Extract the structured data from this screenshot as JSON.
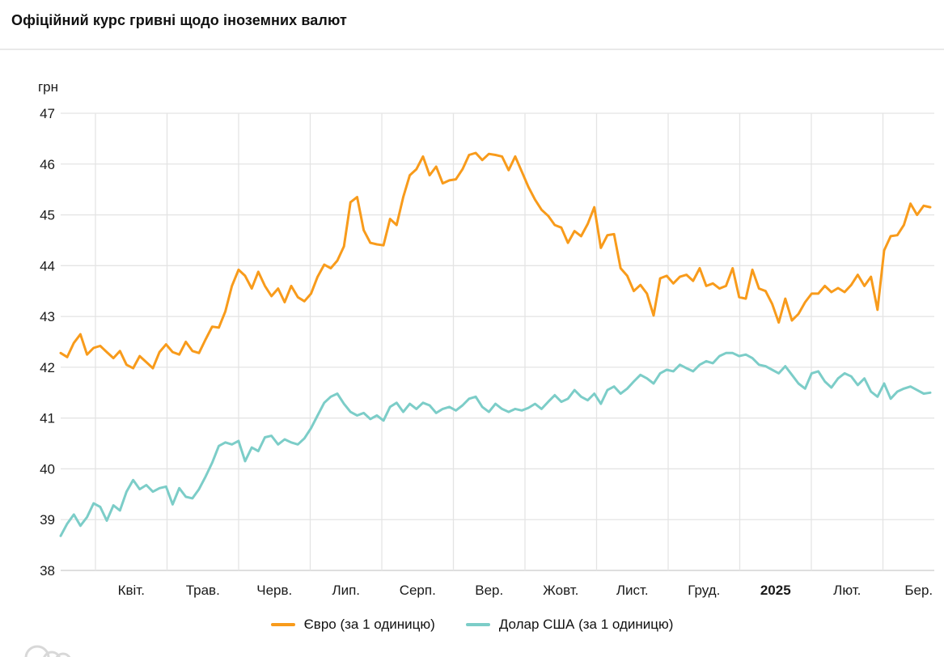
{
  "header": {
    "title": "Офіційний курс гривні щодо іноземних валют"
  },
  "colors": {
    "euro": "#F89B1B",
    "usd": "#7CCDC8",
    "grid": "#E4E4E4",
    "axis": "#CBCBCB",
    "text": "#1A1A1A",
    "divider": "#E9E9E9",
    "watermark": "#D8D8D8"
  },
  "chart_data": {
    "type": "line",
    "title": "Офіційний курс гривні щодо іноземних валют",
    "unit_label": "грн",
    "ylim": [
      38,
      47
    ],
    "y_ticks": [
      47,
      46,
      45,
      44,
      43,
      42,
      41,
      40,
      39,
      38
    ],
    "x_labels": [
      "Квіт.",
      "Трав.",
      "Черв.",
      "Лип.",
      "Серп.",
      "Вер.",
      "Жовт.",
      "Лист.",
      "Груд.",
      "2025",
      "Лют.",
      "Бер."
    ],
    "bold_x_label": "2025",
    "grid": true,
    "legend_position": "bottom",
    "series": [
      {
        "name": "Євро (за 1 одиницю)",
        "color_key": "euro",
        "values": [
          42.28,
          42.2,
          42.48,
          42.65,
          42.25,
          42.38,
          42.42,
          42.3,
          42.18,
          42.32,
          42.05,
          41.98,
          42.22,
          42.1,
          41.98,
          42.3,
          42.45,
          42.3,
          42.25,
          42.5,
          42.32,
          42.28,
          42.55,
          42.8,
          42.78,
          43.1,
          43.6,
          43.92,
          43.8,
          43.55,
          43.88,
          43.6,
          43.4,
          43.55,
          43.28,
          43.6,
          43.38,
          43.3,
          43.45,
          43.78,
          44.02,
          43.95,
          44.1,
          44.38,
          45.25,
          45.35,
          44.7,
          44.45,
          44.42,
          44.4,
          44.92,
          44.8,
          45.35,
          45.78,
          45.9,
          46.15,
          45.78,
          45.95,
          45.62,
          45.68,
          45.7,
          45.9,
          46.18,
          46.22,
          46.08,
          46.2,
          46.18,
          46.15,
          45.88,
          46.15,
          45.85,
          45.55,
          45.3,
          45.1,
          44.98,
          44.8,
          44.75,
          44.45,
          44.68,
          44.58,
          44.82,
          45.15,
          44.35,
          44.6,
          44.62,
          43.95,
          43.8,
          43.5,
          43.62,
          43.45,
          43.02,
          43.75,
          43.8,
          43.65,
          43.78,
          43.82,
          43.7,
          43.95,
          43.6,
          43.65,
          43.55,
          43.6,
          43.95,
          43.38,
          43.35,
          43.92,
          43.55,
          43.5,
          43.25,
          42.88,
          43.35,
          42.92,
          43.05,
          43.28,
          43.45,
          43.45,
          43.6,
          43.48,
          43.56,
          43.48,
          43.62,
          43.82,
          43.6,
          43.78,
          43.13,
          44.3,
          44.58,
          44.6,
          44.8,
          45.22,
          45.0,
          45.18,
          45.15
        ]
      },
      {
        "name": "Долар США (за 1 одиницю)",
        "color_key": "usd",
        "values": [
          38.68,
          38.92,
          39.1,
          38.88,
          39.05,
          39.32,
          39.25,
          38.98,
          39.28,
          39.18,
          39.55,
          39.78,
          39.6,
          39.68,
          39.55,
          39.62,
          39.65,
          39.3,
          39.62,
          39.45,
          39.42,
          39.6,
          39.85,
          40.12,
          40.45,
          40.52,
          40.48,
          40.55,
          40.15,
          40.42,
          40.35,
          40.62,
          40.65,
          40.48,
          40.58,
          40.52,
          40.48,
          40.6,
          40.8,
          41.05,
          41.3,
          41.42,
          41.48,
          41.28,
          41.12,
          41.05,
          41.1,
          40.98,
          41.05,
          40.95,
          41.22,
          41.3,
          41.12,
          41.28,
          41.18,
          41.3,
          41.25,
          41.1,
          41.18,
          41.22,
          41.15,
          41.25,
          41.38,
          41.42,
          41.22,
          41.12,
          41.28,
          41.18,
          41.12,
          41.18,
          41.15,
          41.2,
          41.28,
          41.18,
          41.32,
          41.45,
          41.32,
          41.38,
          41.55,
          41.42,
          41.35,
          41.48,
          41.28,
          41.55,
          41.62,
          41.48,
          41.58,
          41.72,
          41.85,
          41.78,
          41.68,
          41.88,
          41.95,
          41.92,
          42.05,
          41.98,
          41.92,
          42.05,
          42.12,
          42.08,
          42.22,
          42.28,
          42.28,
          42.22,
          42.25,
          42.18,
          42.05,
          42.02,
          41.95,
          41.88,
          42.02,
          41.85,
          41.68,
          41.58,
          41.88,
          41.92,
          41.72,
          41.6,
          41.78,
          41.88,
          41.82,
          41.65,
          41.78,
          41.52,
          41.42,
          41.68,
          41.38,
          41.52,
          41.58,
          41.62,
          41.55,
          41.48,
          41.5
        ]
      }
    ]
  }
}
